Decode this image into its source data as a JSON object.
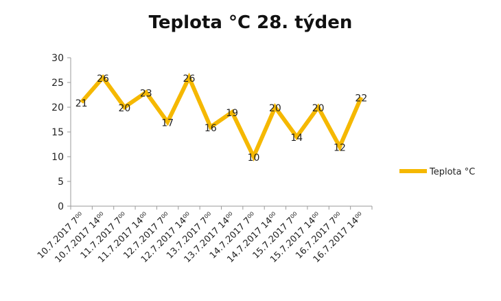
{
  "chart_data": {
    "type": "line",
    "title": "Teplota °C 28. týden",
    "xlabel": "",
    "ylabel": "",
    "ylim": [
      0,
      30
    ],
    "yticks": [
      0,
      5,
      10,
      15,
      20,
      25,
      30
    ],
    "grid": false,
    "legend_position": "right",
    "categories": [
      "10.7.2017 7⁰⁰",
      "10.7.2017 14⁰⁰",
      "11.7.2017 7⁰⁰",
      "11.7.2017 14⁰⁰",
      "12.7.2017 7⁰⁰",
      "12.7.2017 14⁰⁰",
      "13.7.2017 7⁰⁰",
      "13.7.2017 14⁰⁰",
      "14.7.2017 7⁰⁰",
      "14.7.2017 14⁰⁰",
      "15.7.2017 7⁰⁰",
      "15.7.2017 14⁰⁰",
      "16.7.2017 7⁰⁰",
      "16.7.2017 14⁰⁰"
    ],
    "series": [
      {
        "name": "Teplota °C",
        "color": "#F5B800",
        "values": [
          21,
          26,
          20,
          23,
          17,
          26,
          16,
          19,
          10,
          20,
          14,
          20,
          12,
          22
        ]
      }
    ]
  }
}
